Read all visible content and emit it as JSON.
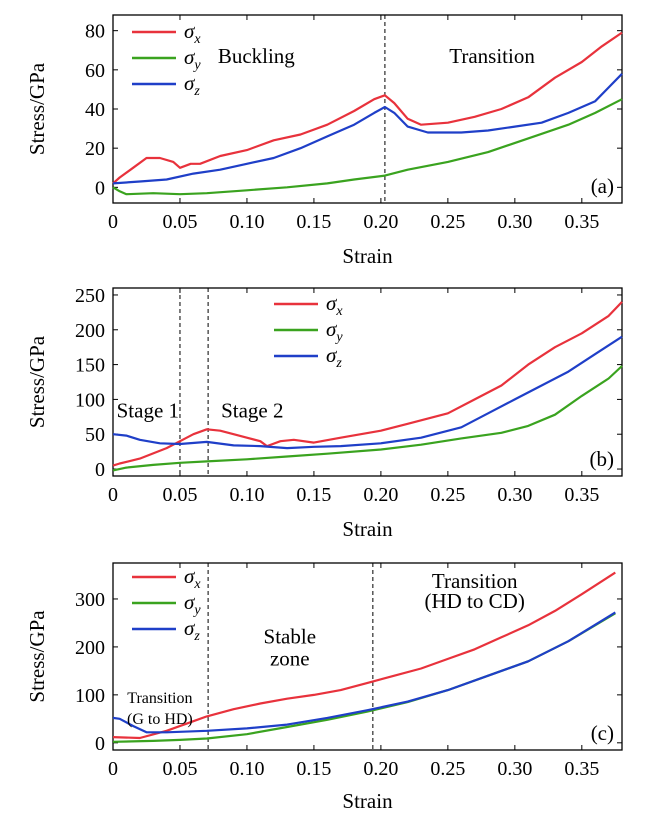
{
  "colors": {
    "sigma_x": "#e8323c",
    "sigma_y": "#3aa31f",
    "sigma_z": "#1f3fc8",
    "axis": "#000000"
  },
  "chart_data": [
    {
      "type": "line",
      "panel_label": "(a)",
      "xlabel": "Strain",
      "ylabel": "Stress/GPa",
      "xlim": [
        0,
        0.38
      ],
      "ylim": [
        -8,
        88
      ],
      "xticks": [
        0,
        0.05,
        0.1,
        0.15,
        0.2,
        0.25,
        0.3,
        0.35
      ],
      "xtick_labels": [
        "0",
        "0.05",
        "0.10",
        "0.15",
        "0.20",
        "0.25",
        "0.30",
        "0.35"
      ],
      "yticks": [
        0,
        20,
        40,
        60,
        80
      ],
      "ytick_labels": [
        "0",
        "20",
        "40",
        "60",
        "80"
      ],
      "vlines": [
        0.203
      ],
      "annotations": [
        {
          "text": "Buckling",
          "x": 0.107,
          "y": 67
        },
        {
          "text": "Transition",
          "x": 0.283,
          "y": 67
        }
      ],
      "legend": {
        "position": "top-left",
        "entries": [
          "σx",
          "σy",
          "σz"
        ]
      },
      "series": [
        {
          "name": "σx",
          "color_key": "sigma_x",
          "points": [
            [
              0,
              2
            ],
            [
              0.005,
              5
            ],
            [
              0.015,
              10
            ],
            [
              0.025,
              15
            ],
            [
              0.035,
              15
            ],
            [
              0.045,
              13
            ],
            [
              0.05,
              10
            ],
            [
              0.058,
              12
            ],
            [
              0.065,
              12
            ],
            [
              0.08,
              16
            ],
            [
              0.1,
              19
            ],
            [
              0.12,
              24
            ],
            [
              0.14,
              27
            ],
            [
              0.16,
              32
            ],
            [
              0.18,
              39
            ],
            [
              0.195,
              45
            ],
            [
              0.203,
              47
            ],
            [
              0.21,
              43
            ],
            [
              0.22,
              35
            ],
            [
              0.23,
              32
            ],
            [
              0.25,
              33
            ],
            [
              0.27,
              36
            ],
            [
              0.29,
              40
            ],
            [
              0.31,
              46
            ],
            [
              0.33,
              56
            ],
            [
              0.35,
              64
            ],
            [
              0.365,
              72
            ],
            [
              0.38,
              79
            ]
          ]
        },
        {
          "name": "σy",
          "color_key": "sigma_y",
          "points": [
            [
              0,
              0
            ],
            [
              0.005,
              -2
            ],
            [
              0.01,
              -3.5
            ],
            [
              0.03,
              -3
            ],
            [
              0.05,
              -3.5
            ],
            [
              0.07,
              -3
            ],
            [
              0.1,
              -1.5
            ],
            [
              0.13,
              0
            ],
            [
              0.16,
              2
            ],
            [
              0.18,
              4
            ],
            [
              0.203,
              6
            ],
            [
              0.22,
              9
            ],
            [
              0.25,
              13
            ],
            [
              0.28,
              18
            ],
            [
              0.31,
              25
            ],
            [
              0.34,
              32
            ],
            [
              0.36,
              38
            ],
            [
              0.38,
              45
            ]
          ]
        },
        {
          "name": "σz",
          "color_key": "sigma_z",
          "points": [
            [
              0,
              2
            ],
            [
              0.02,
              3
            ],
            [
              0.04,
              4
            ],
            [
              0.06,
              7
            ],
            [
              0.08,
              9
            ],
            [
              0.1,
              12
            ],
            [
              0.12,
              15
            ],
            [
              0.14,
              20
            ],
            [
              0.16,
              26
            ],
            [
              0.18,
              32
            ],
            [
              0.195,
              38
            ],
            [
              0.203,
              41
            ],
            [
              0.21,
              38
            ],
            [
              0.22,
              31
            ],
            [
              0.235,
              28
            ],
            [
              0.26,
              28
            ],
            [
              0.28,
              29
            ],
            [
              0.3,
              31
            ],
            [
              0.32,
              33
            ],
            [
              0.34,
              38
            ],
            [
              0.36,
              44
            ],
            [
              0.37,
              51
            ],
            [
              0.38,
              58
            ]
          ]
        }
      ]
    },
    {
      "type": "line",
      "panel_label": "(b)",
      "xlabel": "Strain",
      "ylabel": "Stress/GPa",
      "xlim": [
        0,
        0.38
      ],
      "ylim": [
        -10,
        260
      ],
      "xticks": [
        0,
        0.05,
        0.1,
        0.15,
        0.2,
        0.25,
        0.3,
        0.35
      ],
      "xtick_labels": [
        "0",
        "0.05",
        "0.10",
        "0.15",
        "0.20",
        "0.25",
        "0.30",
        "0.35"
      ],
      "yticks": [
        0,
        50,
        100,
        150,
        200,
        250
      ],
      "ytick_labels": [
        "0",
        "50",
        "100",
        "150",
        "200",
        "250"
      ],
      "vlines": [
        0.05,
        0.071
      ],
      "annotations": [
        {
          "text": "Stage 1",
          "x": 0.026,
          "y": 84
        },
        {
          "text": "Stage 2",
          "x": 0.104,
          "y": 84
        }
      ],
      "legend": {
        "position": "top-center",
        "entries": [
          "σx",
          "σy",
          "σz"
        ]
      },
      "series": [
        {
          "name": "σx",
          "color_key": "sigma_x",
          "points": [
            [
              0,
              5
            ],
            [
              0.005,
              8
            ],
            [
              0.02,
              15
            ],
            [
              0.04,
              30
            ],
            [
              0.05,
              40
            ],
            [
              0.06,
              50
            ],
            [
              0.07,
              57
            ],
            [
              0.08,
              55
            ],
            [
              0.09,
              50
            ],
            [
              0.1,
              45
            ],
            [
              0.11,
              40
            ],
            [
              0.115,
              33
            ],
            [
              0.125,
              40
            ],
            [
              0.135,
              42
            ],
            [
              0.15,
              38
            ],
            [
              0.17,
              45
            ],
            [
              0.2,
              55
            ],
            [
              0.22,
              65
            ],
            [
              0.25,
              80
            ],
            [
              0.27,
              100
            ],
            [
              0.29,
              120
            ],
            [
              0.31,
              150
            ],
            [
              0.33,
              175
            ],
            [
              0.35,
              195
            ],
            [
              0.37,
              220
            ],
            [
              0.38,
              240
            ]
          ]
        },
        {
          "name": "σy",
          "color_key": "sigma_y",
          "points": [
            [
              0,
              -2
            ],
            [
              0.01,
              2
            ],
            [
              0.03,
              6
            ],
            [
              0.05,
              9
            ],
            [
              0.07,
              11
            ],
            [
              0.1,
              14
            ],
            [
              0.13,
              18
            ],
            [
              0.16,
              22
            ],
            [
              0.2,
              28
            ],
            [
              0.23,
              35
            ],
            [
              0.26,
              44
            ],
            [
              0.29,
              52
            ],
            [
              0.31,
              62
            ],
            [
              0.33,
              78
            ],
            [
              0.35,
              105
            ],
            [
              0.37,
              130
            ],
            [
              0.38,
              148
            ]
          ]
        },
        {
          "name": "σz",
          "color_key": "sigma_z",
          "points": [
            [
              0,
              50
            ],
            [
              0.01,
              48
            ],
            [
              0.02,
              42
            ],
            [
              0.035,
              37
            ],
            [
              0.05,
              36
            ],
            [
              0.07,
              39
            ],
            [
              0.09,
              34
            ],
            [
              0.11,
              33
            ],
            [
              0.13,
              30
            ],
            [
              0.15,
              32
            ],
            [
              0.17,
              33
            ],
            [
              0.2,
              37
            ],
            [
              0.23,
              45
            ],
            [
              0.26,
              60
            ],
            [
              0.28,
              80
            ],
            [
              0.3,
              100
            ],
            [
              0.32,
              120
            ],
            [
              0.34,
              140
            ],
            [
              0.36,
              165
            ],
            [
              0.38,
              190
            ]
          ]
        }
      ]
    },
    {
      "type": "line",
      "panel_label": "(c)",
      "xlabel": "Strain",
      "ylabel": "Stress/GPa",
      "xlim": [
        0,
        0.38
      ],
      "ylim": [
        -15,
        375
      ],
      "xticks": [
        0,
        0.05,
        0.1,
        0.15,
        0.2,
        0.25,
        0.3,
        0.35
      ],
      "xtick_labels": [
        "0",
        "0.05",
        "0.10",
        "0.15",
        "0.20",
        "0.25",
        "0.30",
        "0.35"
      ],
      "yticks": [
        0,
        100,
        200,
        300
      ],
      "ytick_labels": [
        "0",
        "100",
        "200",
        "300"
      ],
      "vlines": [
        0.071,
        0.194
      ],
      "annotations": [
        {
          "text": "Transition",
          "x": 0.035,
          "y": 98,
          "small": true
        },
        {
          "text": "(G to HD)",
          "x": 0.035,
          "y": 98,
          "small": true,
          "line2": true
        },
        {
          "text": "Stable",
          "x": 0.132,
          "y": 222
        },
        {
          "text": "zone",
          "x": 0.132,
          "y": 176
        },
        {
          "text": "Transition",
          "x": 0.27,
          "y": 337
        },
        {
          "text": "(HD to CD)",
          "x": 0.27,
          "y": 296
        }
      ],
      "legend": {
        "position": "top-left",
        "entries": [
          "σx",
          "σy",
          "σz"
        ]
      },
      "series": [
        {
          "name": "σx",
          "color_key": "sigma_x",
          "points": [
            [
              0,
              12
            ],
            [
              0.02,
              10
            ],
            [
              0.04,
              25
            ],
            [
              0.06,
              45
            ],
            [
              0.07,
              55
            ],
            [
              0.09,
              70
            ],
            [
              0.11,
              82
            ],
            [
              0.13,
              92
            ],
            [
              0.15,
              100
            ],
            [
              0.17,
              110
            ],
            [
              0.19,
              125
            ],
            [
              0.21,
              140
            ],
            [
              0.23,
              155
            ],
            [
              0.25,
              175
            ],
            [
              0.27,
              195
            ],
            [
              0.29,
              220
            ],
            [
              0.31,
              245
            ],
            [
              0.33,
              275
            ],
            [
              0.35,
              310
            ],
            [
              0.375,
              355
            ]
          ]
        },
        {
          "name": "σy",
          "color_key": "sigma_y",
          "points": [
            [
              0,
              2
            ],
            [
              0.03,
              4
            ],
            [
              0.05,
              6
            ],
            [
              0.07,
              9
            ],
            [
              0.1,
              18
            ],
            [
              0.13,
              33
            ],
            [
              0.16,
              48
            ],
            [
              0.19,
              65
            ],
            [
              0.22,
              85
            ],
            [
              0.25,
              110
            ],
            [
              0.28,
              140
            ],
            [
              0.31,
              170
            ],
            [
              0.34,
              212
            ],
            [
              0.375,
              270
            ]
          ]
        },
        {
          "name": "σz",
          "color_key": "sigma_z",
          "points": [
            [
              0,
              52
            ],
            [
              0.005,
              50
            ],
            [
              0.015,
              35
            ],
            [
              0.025,
              22
            ],
            [
              0.04,
              22
            ],
            [
              0.07,
              25
            ],
            [
              0.1,
              30
            ],
            [
              0.13,
              38
            ],
            [
              0.16,
              52
            ],
            [
              0.19,
              68
            ],
            [
              0.22,
              86
            ],
            [
              0.25,
              110
            ],
            [
              0.28,
              140
            ],
            [
              0.31,
              170
            ],
            [
              0.34,
              212
            ],
            [
              0.375,
              272
            ]
          ]
        }
      ]
    }
  ]
}
